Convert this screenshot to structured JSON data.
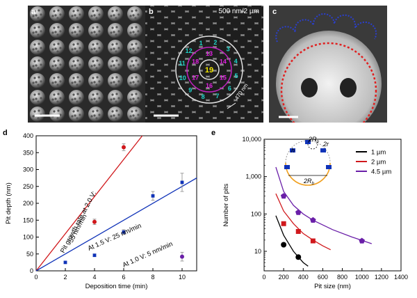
{
  "panels": {
    "a": {
      "label": "a"
    },
    "b": {
      "label": "b",
      "scale_text": "500 nm/2 µm",
      "size_text": "470 nm",
      "numbers": [
        "1",
        "2",
        "3",
        "4",
        "5",
        "6",
        "7",
        "8",
        "9",
        "10",
        "11",
        "12",
        "13",
        "14",
        "15",
        "16",
        "17",
        "18",
        "19"
      ]
    },
    "c": {
      "label": "c"
    },
    "d": {
      "label": "d"
    },
    "e": {
      "label": "e"
    }
  },
  "colors": {
    "red": "#d0181c",
    "blue": "#1033b8",
    "purple": "#6a1fa8",
    "black": "#000000"
  },
  "chart_data": [
    {
      "type": "scatter",
      "panel": "d",
      "xlabel": "Deposition time (min)",
      "ylabel": "Pit depth (nm)",
      "xlim": [
        0,
        11
      ],
      "ylim": [
        0,
        400
      ],
      "xticks": [
        0,
        2,
        4,
        6,
        8,
        10
      ],
      "yticks": [
        0,
        50,
        100,
        150,
        200,
        250,
        300,
        350,
        400
      ],
      "series": [
        {
          "color": "red",
          "marker": "circle",
          "points": [
            {
              "x": 4,
              "y": 145,
              "err": 8
            },
            {
              "x": 6,
              "y": 366,
              "err": 10
            }
          ]
        },
        {
          "color": "blue",
          "marker": "square",
          "points": [
            {
              "x": 2,
              "y": 25,
              "err": 3
            },
            {
              "x": 4,
              "y": 46,
              "err": 4
            },
            {
              "x": 6,
              "y": 115,
              "err": 7
            },
            {
              "x": 8,
              "y": 222,
              "err": 13
            },
            {
              "x": 10,
              "y": 262,
              "err": 27
            }
          ]
        },
        {
          "color": "purple",
          "marker": "circle",
          "points": [
            {
              "x": 10,
              "y": 42,
              "err": 13
            }
          ]
        }
      ],
      "fit_lines": [
        {
          "color": "red",
          "slope": 55
        },
        {
          "color": "blue",
          "slope": 25
        }
      ],
      "annotations": [
        {
          "text": "Pit growth rate at 2.0 V:",
          "color": "black"
        },
        {
          "text": "55 nm/min",
          "color": "black"
        },
        {
          "text": "At 1.5 V: 25 nm/min",
          "color": "black"
        },
        {
          "text": "At 1.0 V: 5 nm/min",
          "color": "black"
        }
      ]
    },
    {
      "type": "scatter",
      "panel": "e",
      "xlabel": "Pit size (nm)",
      "ylabel": "Number of pits",
      "xlim": [
        0,
        1400
      ],
      "ylim": [
        3,
        10000
      ],
      "yscale": "log",
      "xticks": [
        0,
        200,
        400,
        600,
        800,
        1000,
        1200,
        1400
      ],
      "yticks": [
        {
          "v": 10,
          "label": "10"
        },
        {
          "v": 100,
          "label": "100"
        },
        {
          "v": 1000,
          "label": "1,000"
        },
        {
          "v": 10000,
          "label": "10,000"
        }
      ],
      "legend": {
        "position": "top-right",
        "entries": [
          {
            "name": "1 µm",
            "color": "black"
          },
          {
            "name": "2 µm",
            "color": "red"
          },
          {
            "name": "4.5 µm",
            "color": "purple"
          }
        ]
      },
      "inset_labels": {
        "h": "h",
        "rp": "2R",
        "rp_sub": "p",
        "r": "2r",
        "rb": "2R",
        "rb_sub": "b"
      },
      "series": [
        {
          "name": "1 µm",
          "color": "black",
          "marker": "circle",
          "points": [
            {
              "x": 200,
              "y": 15
            },
            {
              "x": 350,
              "y": 7
            }
          ],
          "curve": [
            {
              "x": 120,
              "y": 90
            },
            {
              "x": 200,
              "y": 27
            },
            {
              "x": 300,
              "y": 10
            },
            {
              "x": 400,
              "y": 5
            },
            {
              "x": 450,
              "y": 4
            }
          ]
        },
        {
          "name": "2 µm",
          "color": "red",
          "marker": "square",
          "points": [
            {
              "x": 200,
              "y": 55
            },
            {
              "x": 350,
              "y": 34
            },
            {
              "x": 500,
              "y": 19
            }
          ],
          "curve": [
            {
              "x": 120,
              "y": 350
            },
            {
              "x": 200,
              "y": 120
            },
            {
              "x": 300,
              "y": 55
            },
            {
              "x": 400,
              "y": 30
            },
            {
              "x": 500,
              "y": 20
            },
            {
              "x": 600,
              "y": 14
            },
            {
              "x": 680,
              "y": 11
            }
          ]
        },
        {
          "name": "4.5 µm",
          "color": "purple",
          "marker": "pentagon",
          "points": [
            {
              "x": 200,
              "y": 300
            },
            {
              "x": 350,
              "y": 110
            },
            {
              "x": 500,
              "y": 68
            },
            {
              "x": 1000,
              "y": 19
            }
          ],
          "curve": [
            {
              "x": 120,
              "y": 1800
            },
            {
              "x": 200,
              "y": 400
            },
            {
              "x": 300,
              "y": 170
            },
            {
              "x": 400,
              "y": 100
            },
            {
              "x": 500,
              "y": 68
            },
            {
              "x": 700,
              "y": 38
            },
            {
              "x": 900,
              "y": 24
            },
            {
              "x": 1100,
              "y": 16
            }
          ]
        }
      ]
    }
  ]
}
